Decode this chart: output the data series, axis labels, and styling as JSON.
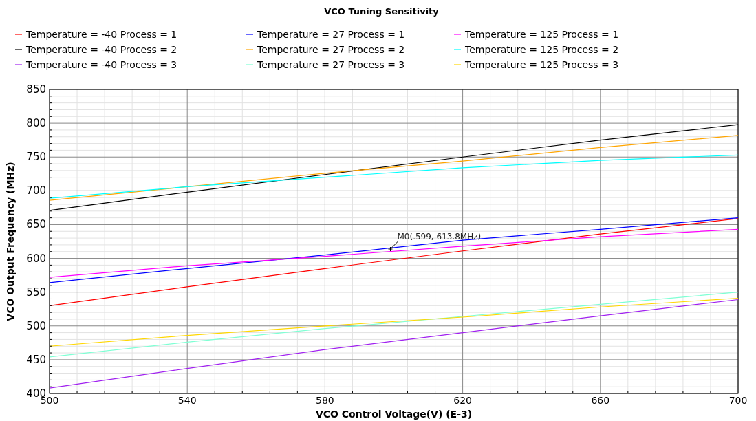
{
  "chart_data": {
    "type": "line",
    "title": "VCO Tuning Sensitivity",
    "xlabel": "VCO Control Voltage(V) (E-3)",
    "ylabel": "VCO Output Frequency (MHz)",
    "x": [
      500,
      540,
      580,
      620,
      660,
      700
    ],
    "series": [
      {
        "name": "Temperature = -40 Process = 1",
        "color": "#ff0000",
        "values": [
          530,
          558,
          585,
          611,
          636,
          659
        ]
      },
      {
        "name": "Temperature = 27 Process = 1",
        "color": "#0000ff",
        "values": [
          564,
          585,
          605,
          627,
          643,
          660
        ]
      },
      {
        "name": "Temperature = 125 Process = 1",
        "color": "#ff00ff",
        "values": [
          572,
          589,
          603,
          618,
          632,
          643
        ]
      },
      {
        "name": "Temperature = -40 Process = 2",
        "color": "#000000",
        "values": [
          671,
          698,
          724,
          750,
          775,
          798
        ]
      },
      {
        "name": "Temperature = 27 Process = 2",
        "color": "#ffa500",
        "values": [
          686,
          706,
          726,
          744,
          764,
          782
        ]
      },
      {
        "name": "Temperature = 125 Process = 2",
        "color": "#00ffff",
        "values": [
          689,
          706,
          720,
          734,
          745,
          753
        ]
      },
      {
        "name": "Temperature = -40 Process = 3",
        "color": "#a020f0",
        "values": [
          408,
          437,
          465,
          490,
          515,
          539
        ]
      },
      {
        "name": "Temperature = 27 Process = 3",
        "color": "#7fffd4",
        "values": [
          454,
          476,
          496,
          514,
          532,
          550
        ]
      },
      {
        "name": "Temperature = 125 Process = 3",
        "color": "#ffd700",
        "values": [
          470,
          486,
          500,
          513,
          528,
          541
        ]
      }
    ],
    "annotations": [
      {
        "text": "M0(.599, 613.8MHz)",
        "x": 599,
        "y": 613.8
      }
    ],
    "xlim": [
      500,
      700
    ],
    "xticks": [
      500,
      540,
      580,
      620,
      660,
      700
    ],
    "ylim": [
      400,
      850
    ],
    "yticks": [
      400,
      450,
      500,
      550,
      600,
      650,
      700,
      750,
      800,
      850
    ],
    "grid": true,
    "legend": "top",
    "marker": "none",
    "line_style": "solid"
  }
}
